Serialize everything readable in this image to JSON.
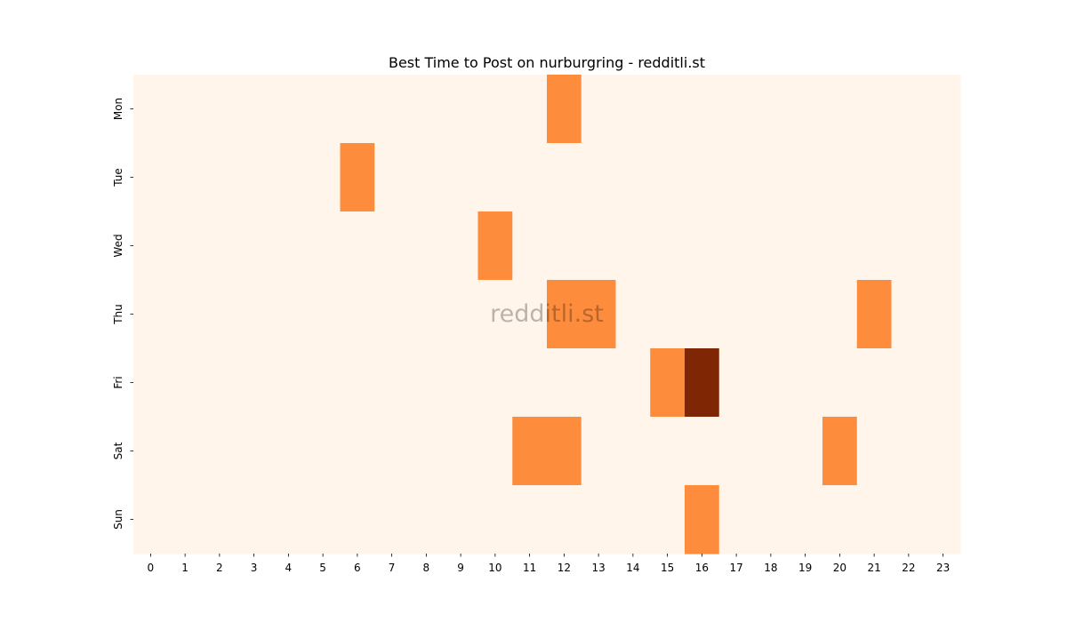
{
  "chart_data": {
    "type": "heatmap",
    "title": "Best Time to Post on nurburgring - redditli.st",
    "xlabel": "",
    "ylabel": "",
    "x": [
      "0",
      "1",
      "2",
      "3",
      "4",
      "5",
      "6",
      "7",
      "8",
      "9",
      "10",
      "11",
      "12",
      "13",
      "14",
      "15",
      "16",
      "17",
      "18",
      "19",
      "20",
      "21",
      "22",
      "23"
    ],
    "y": [
      "Mon",
      "Tue",
      "Wed",
      "Thu",
      "Fri",
      "Sat",
      "Sun"
    ],
    "values": [
      [
        0,
        0,
        0,
        0,
        0,
        0,
        0,
        0,
        0,
        0,
        0,
        0,
        1,
        0,
        0,
        0,
        0,
        0,
        0,
        0,
        0,
        0,
        0,
        0
      ],
      [
        0,
        0,
        0,
        0,
        0,
        0,
        1,
        0,
        0,
        0,
        0,
        0,
        0,
        0,
        0,
        0,
        0,
        0,
        0,
        0,
        0,
        0,
        0,
        0
      ],
      [
        0,
        0,
        0,
        0,
        0,
        0,
        0,
        0,
        0,
        0,
        1,
        0,
        0,
        0,
        0,
        0,
        0,
        0,
        0,
        0,
        0,
        0,
        0,
        0
      ],
      [
        0,
        0,
        0,
        0,
        0,
        0,
        0,
        0,
        0,
        0,
        0,
        0,
        1,
        1,
        0,
        0,
        0,
        0,
        0,
        0,
        0,
        1,
        0,
        0
      ],
      [
        0,
        0,
        0,
        0,
        0,
        0,
        0,
        0,
        0,
        0,
        0,
        0,
        0,
        0,
        0,
        1,
        2,
        0,
        0,
        0,
        0,
        0,
        0,
        0
      ],
      [
        0,
        0,
        0,
        0,
        0,
        0,
        0,
        0,
        0,
        0,
        0,
        1,
        1,
        0,
        0,
        0,
        0,
        0,
        0,
        0,
        1,
        0,
        0,
        0
      ],
      [
        0,
        0,
        0,
        0,
        0,
        0,
        0,
        0,
        0,
        0,
        0,
        0,
        0,
        0,
        0,
        0,
        1,
        0,
        0,
        0,
        0,
        0,
        0,
        0
      ]
    ],
    "colorscale": [
      "#fff5eb",
      "#fd8d3c",
      "#7f2704"
    ],
    "grid": false,
    "legend": "none",
    "watermark": "redditli.st"
  }
}
